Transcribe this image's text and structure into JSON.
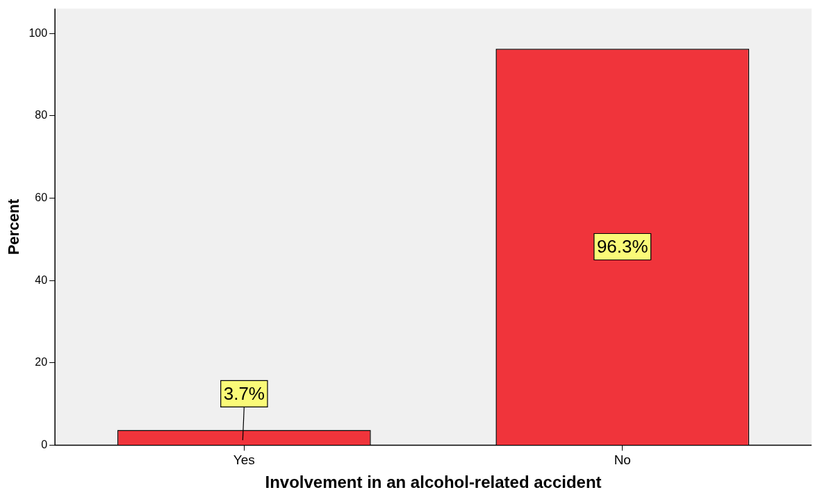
{
  "chart_data": {
    "type": "bar",
    "xlabel": "Involvement in an alcohol-related accident",
    "ylabel": "Percent",
    "categories": [
      "Yes",
      "No"
    ],
    "values": [
      3.7,
      96.3
    ],
    "value_labels": [
      "3.7%",
      "96.3%"
    ],
    "color": "#f0343b",
    "ylim": [
      0,
      106
    ],
    "yticks": [
      0,
      20,
      40,
      60,
      80,
      100
    ]
  }
}
